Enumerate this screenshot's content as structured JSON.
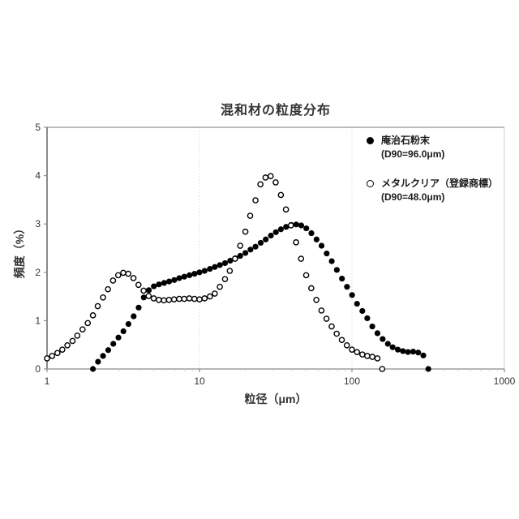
{
  "chart_data": {
    "type": "scatter",
    "title": "混和材の粒度分布",
    "xlabel": "粒径（μm）",
    "ylabel": "頻度（%）",
    "x_scale": "log",
    "xlim": [
      1,
      1000
    ],
    "ylim": [
      0,
      5
    ],
    "x_ticks": [
      "1",
      "10",
      "100",
      "1000"
    ],
    "y_ticks": [
      "0",
      "1",
      "2",
      "3",
      "4",
      "5"
    ],
    "gridlines_x": [
      10,
      100
    ],
    "grid": "vertical-dotted-only",
    "legend_position": "inside-upper-right",
    "series": [
      {
        "name": "庵治石粉末",
        "d90_label": "(D90=96.0μm)",
        "marker": "filled-circle",
        "color": "#000000",
        "points": [
          [
            2.0,
            0.0
          ],
          [
            2.16,
            0.15
          ],
          [
            2.33,
            0.27
          ],
          [
            2.52,
            0.39
          ],
          [
            2.72,
            0.52
          ],
          [
            2.94,
            0.65
          ],
          [
            3.17,
            0.78
          ],
          [
            3.42,
            0.93
          ],
          [
            3.7,
            1.09
          ],
          [
            3.99,
            1.27
          ],
          [
            4.31,
            1.48
          ],
          [
            4.65,
            1.63
          ],
          [
            5.02,
            1.71
          ],
          [
            5.42,
            1.75
          ],
          [
            5.86,
            1.78
          ],
          [
            6.32,
            1.81
          ],
          [
            6.83,
            1.84
          ],
          [
            7.37,
            1.88
          ],
          [
            7.96,
            1.91
          ],
          [
            8.6,
            1.94
          ],
          [
            9.28,
            1.97
          ],
          [
            10.0,
            2.0
          ],
          [
            10.8,
            2.03
          ],
          [
            11.7,
            2.07
          ],
          [
            12.6,
            2.11
          ],
          [
            13.6,
            2.15
          ],
          [
            14.7,
            2.19
          ],
          [
            15.9,
            2.24
          ],
          [
            17.2,
            2.29
          ],
          [
            18.5,
            2.34
          ],
          [
            20.0,
            2.4
          ],
          [
            21.6,
            2.47
          ],
          [
            23.3,
            2.53
          ],
          [
            25.2,
            2.61
          ],
          [
            27.2,
            2.68
          ],
          [
            29.4,
            2.76
          ],
          [
            31.7,
            2.83
          ],
          [
            34.2,
            2.89
          ],
          [
            37.0,
            2.94
          ],
          [
            39.9,
            2.98
          ],
          [
            43.1,
            2.99
          ],
          [
            46.5,
            2.97
          ],
          [
            50.2,
            2.91
          ],
          [
            54.2,
            2.81
          ],
          [
            58.6,
            2.68
          ],
          [
            63.2,
            2.55
          ],
          [
            68.3,
            2.39
          ],
          [
            73.7,
            2.23
          ],
          [
            79.6,
            2.05
          ],
          [
            86.0,
            1.87
          ],
          [
            92.8,
            1.7
          ],
          [
            100.2,
            1.53
          ],
          [
            108,
            1.35
          ],
          [
            117,
            1.2
          ],
          [
            126,
            1.05
          ],
          [
            136,
            0.88
          ],
          [
            147,
            0.74
          ],
          [
            159,
            0.62
          ],
          [
            172,
            0.52
          ],
          [
            185,
            0.45
          ],
          [
            200,
            0.4
          ],
          [
            216,
            0.37
          ],
          [
            233,
            0.35
          ],
          [
            252,
            0.36
          ],
          [
            272,
            0.34
          ],
          [
            294,
            0.28
          ],
          [
            317,
            0.0
          ]
        ]
      },
      {
        "name": "メタルクリア（登録商標）",
        "d90_label": "(D90=48.0μm)",
        "marker": "open-circle",
        "color": "#000000",
        "points": [
          [
            1.0,
            0.22
          ],
          [
            1.08,
            0.27
          ],
          [
            1.17,
            0.33
          ],
          [
            1.26,
            0.4
          ],
          [
            1.36,
            0.49
          ],
          [
            1.47,
            0.58
          ],
          [
            1.58,
            0.69
          ],
          [
            1.71,
            0.82
          ],
          [
            1.85,
            0.95
          ],
          [
            2.0,
            1.11
          ],
          [
            2.15,
            1.3
          ],
          [
            2.33,
            1.48
          ],
          [
            2.51,
            1.65
          ],
          [
            2.71,
            1.83
          ],
          [
            2.93,
            1.94
          ],
          [
            3.16,
            1.99
          ],
          [
            3.41,
            1.97
          ],
          [
            3.69,
            1.88
          ],
          [
            3.98,
            1.74
          ],
          [
            4.3,
            1.62
          ],
          [
            4.64,
            1.51
          ],
          [
            5.01,
            1.46
          ],
          [
            5.41,
            1.43
          ],
          [
            5.84,
            1.42
          ],
          [
            6.31,
            1.43
          ],
          [
            6.81,
            1.44
          ],
          [
            7.36,
            1.45
          ],
          [
            7.94,
            1.45
          ],
          [
            8.58,
            1.46
          ],
          [
            9.26,
            1.45
          ],
          [
            10.0,
            1.44
          ],
          [
            10.8,
            1.46
          ],
          [
            11.7,
            1.5
          ],
          [
            12.6,
            1.56
          ],
          [
            13.6,
            1.7
          ],
          [
            14.7,
            1.86
          ],
          [
            15.8,
            2.03
          ],
          [
            17.1,
            2.28
          ],
          [
            18.5,
            2.55
          ],
          [
            20.0,
            2.84
          ],
          [
            21.5,
            3.17
          ],
          [
            23.3,
            3.49
          ],
          [
            25.1,
            3.82
          ],
          [
            27.1,
            3.96
          ],
          [
            29.3,
            3.99
          ],
          [
            31.6,
            3.86
          ],
          [
            34.2,
            3.6
          ],
          [
            36.9,
            3.3
          ],
          [
            39.8,
            2.97
          ],
          [
            43.0,
            2.62
          ],
          [
            46.4,
            2.28
          ],
          [
            50.1,
            1.94
          ],
          [
            54.1,
            1.67
          ],
          [
            58.4,
            1.43
          ],
          [
            63.1,
            1.21
          ],
          [
            68.1,
            1.04
          ],
          [
            73.6,
            0.88
          ],
          [
            79.4,
            0.73
          ],
          [
            85.8,
            0.6
          ],
          [
            92.6,
            0.49
          ],
          [
            100,
            0.4
          ],
          [
            108,
            0.35
          ],
          [
            117,
            0.3
          ],
          [
            126,
            0.27
          ],
          [
            136,
            0.25
          ],
          [
            147,
            0.22
          ],
          [
            158,
            0.0
          ]
        ]
      }
    ],
    "colors": {
      "frame_light": "#d9d9d9",
      "axis": "#8c8c8c",
      "gridline": "#d9d9d9",
      "tick_label": "#333333",
      "marker": "#000000"
    }
  }
}
